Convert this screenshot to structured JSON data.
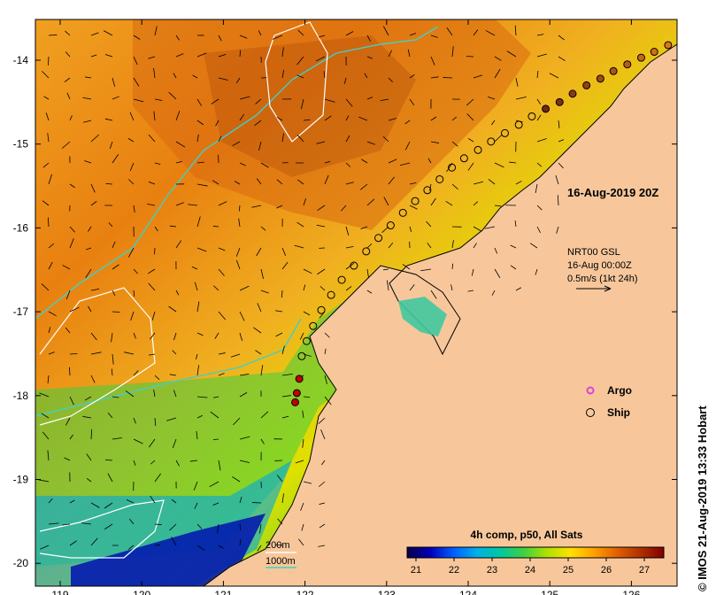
{
  "map": {
    "timestamp": "16-Aug-2019 20Z",
    "current_product": {
      "line1": "NRT00 GSL",
      "line2": "16-Aug 00:00Z",
      "line3": "0.5m/s (1kt 24h)"
    },
    "legend": {
      "argo_label": "Argo",
      "ship_label": "Ship",
      "argo_color": "#e040e0",
      "ship_color": "#000000"
    },
    "isobaths": {
      "label_200": "200m",
      "label_1000": "1000m",
      "color_200": "#ffffff",
      "color_1000": "#40d0c8"
    },
    "colorbar": {
      "title": "4h comp, p50, All Sats",
      "ticks": [
        "21",
        "22",
        "23",
        "24",
        "25",
        "26",
        "27"
      ],
      "colors": [
        "#08004a",
        "#0000b8",
        "#0060ff",
        "#00b0e8",
        "#00c8a0",
        "#40d040",
        "#b0e000",
        "#ffe000",
        "#ffa000",
        "#e06000",
        "#b03000",
        "#800000"
      ]
    },
    "axes": {
      "x_ticks": [
        "119",
        "120",
        "121",
        "122",
        "123",
        "124",
        "125",
        "126"
      ],
      "y_ticks": [
        "-14",
        "-15",
        "-16",
        "-17",
        "-18",
        "-19",
        "-20"
      ]
    },
    "credit": "© IMOS 21-Aug-2019 13:33 Hobart",
    "land_color": "#f7c79b",
    "ship_track": [
      {
        "lon": 126.45,
        "lat": -13.82,
        "age": 0.0
      },
      {
        "lon": 126.28,
        "lat": -13.9,
        "age": 0.03
      },
      {
        "lon": 126.12,
        "lat": -13.97,
        "age": 0.06
      },
      {
        "lon": 125.95,
        "lat": -14.05,
        "age": 0.09
      },
      {
        "lon": 125.78,
        "lat": -14.13,
        "age": 0.12
      },
      {
        "lon": 125.62,
        "lat": -14.22,
        "age": 0.15
      },
      {
        "lon": 125.45,
        "lat": -14.3,
        "age": 0.18
      },
      {
        "lon": 125.28,
        "lat": -14.4,
        "age": 0.21
      },
      {
        "lon": 125.12,
        "lat": -14.5,
        "age": 0.24
      },
      {
        "lon": 124.95,
        "lat": -14.58,
        "age": 0.27
      },
      {
        "lon": 124.78,
        "lat": -14.67,
        "age": 0.3
      },
      {
        "lon": 124.62,
        "lat": -14.77,
        "age": 0.33
      },
      {
        "lon": 124.45,
        "lat": -14.87,
        "age": 0.36
      },
      {
        "lon": 124.28,
        "lat": -14.97,
        "age": 0.39
      },
      {
        "lon": 124.12,
        "lat": -15.07,
        "age": 0.42
      },
      {
        "lon": 123.95,
        "lat": -15.17,
        "age": 0.45
      },
      {
        "lon": 123.8,
        "lat": -15.28,
        "age": 0.48
      },
      {
        "lon": 123.65,
        "lat": -15.42,
        "age": 0.51
      },
      {
        "lon": 123.5,
        "lat": -15.55,
        "age": 0.54
      },
      {
        "lon": 123.35,
        "lat": -15.68,
        "age": 0.57
      },
      {
        "lon": 123.2,
        "lat": -15.82,
        "age": 0.6
      },
      {
        "lon": 123.05,
        "lat": -15.97,
        "age": 0.63
      },
      {
        "lon": 122.9,
        "lat": -16.12,
        "age": 0.66
      },
      {
        "lon": 122.75,
        "lat": -16.28,
        "age": 0.69
      },
      {
        "lon": 122.6,
        "lat": -16.45,
        "age": 0.72
      },
      {
        "lon": 122.45,
        "lat": -16.62,
        "age": 0.75
      },
      {
        "lon": 122.32,
        "lat": -16.8,
        "age": 0.78
      },
      {
        "lon": 122.2,
        "lat": -16.98,
        "age": 0.81
      },
      {
        "lon": 122.1,
        "lat": -17.17,
        "age": 0.84
      },
      {
        "lon": 122.02,
        "lat": -17.35,
        "age": 0.87
      },
      {
        "lon": 121.96,
        "lat": -17.53,
        "age": 0.9
      },
      {
        "lon": 121.93,
        "lat": -17.8,
        "age": 0.93,
        "red": true
      },
      {
        "lon": 121.9,
        "lat": -17.97,
        "age": 0.96,
        "red": true
      },
      {
        "lon": 121.88,
        "lat": -18.08,
        "age": 1.0,
        "red": true
      }
    ]
  }
}
